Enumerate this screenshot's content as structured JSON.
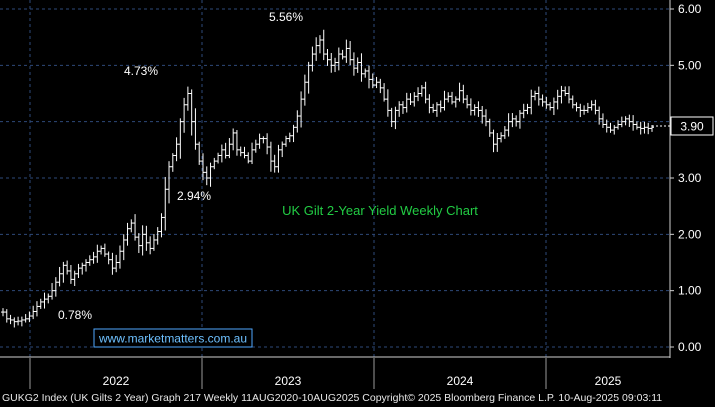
{
  "chart_data": {
    "type": "ohlc",
    "title": "UK Gilt 2-Year Yield Weekly Chart",
    "watermark": "www.marketmatters.com.au",
    "y_ticks": [
      "6.00",
      "5.00",
      "4.00",
      "3.00",
      "2.00",
      "1.00",
      "0.00"
    ],
    "ylim": [
      -0.1,
      6.1
    ],
    "x_ticks": [
      "2022",
      "2023",
      "2024",
      "2025"
    ],
    "last_value_label": "3.90",
    "annotations": [
      "4.73%",
      "5.56%",
      "2.94%",
      "0.78%"
    ],
    "grid": true,
    "colors": {
      "background": "#000000",
      "bars": "#ffffff",
      "grid": "#2e4a7a",
      "title": "#22cc44",
      "watermark_border": "#4fa8ff",
      "watermark_text": "#6ec1ff"
    },
    "series_weekly_close": [
      0.62,
      0.5,
      0.48,
      0.45,
      0.46,
      0.48,
      0.5,
      0.55,
      0.63,
      0.72,
      0.8,
      0.85,
      0.9,
      1.0,
      1.15,
      1.3,
      1.45,
      1.35,
      1.2,
      1.3,
      1.4,
      1.45,
      1.5,
      1.55,
      1.6,
      1.7,
      1.75,
      1.65,
      1.55,
      1.4,
      1.5,
      1.7,
      1.9,
      2.1,
      2.2,
      1.95,
      1.8,
      2.0,
      1.85,
      1.75,
      1.9,
      2.05,
      2.3,
      2.8,
      3.2,
      3.4,
      3.6,
      4.0,
      4.3,
      4.5,
      4.0,
      3.6,
      3.3,
      3.1,
      3.0,
      3.2,
      3.3,
      3.4,
      3.5,
      3.4,
      3.6,
      3.8,
      3.5,
      3.45,
      3.4,
      3.3,
      3.5,
      3.6,
      3.7,
      3.7,
      3.55,
      3.3,
      3.2,
      3.5,
      3.6,
      3.7,
      3.75,
      3.9,
      4.1,
      4.4,
      4.7,
      5.0,
      5.2,
      5.35,
      5.45,
      5.2,
      5.1,
      5.0,
      5.05,
      5.2,
      5.15,
      5.3,
      5.1,
      4.95,
      5.05,
      4.85,
      4.9,
      4.75,
      4.65,
      4.7,
      4.6,
      4.4,
      4.2,
      4.0,
      4.2,
      4.3,
      4.25,
      4.4,
      4.35,
      4.45,
      4.5,
      4.6,
      4.4,
      4.25,
      4.2,
      4.3,
      4.25,
      4.4,
      4.45,
      4.35,
      4.4,
      4.55,
      4.4,
      4.3,
      4.2,
      4.25,
      4.2,
      4.1,
      4.0,
      3.8,
      3.6,
      3.7,
      3.75,
      3.85,
      4.0,
      4.05,
      4.0,
      4.15,
      4.2,
      4.25,
      4.45,
      4.5,
      4.4,
      4.35,
      4.3,
      4.25,
      4.35,
      4.45,
      4.55,
      4.5,
      4.4,
      4.3,
      4.25,
      4.2,
      4.2,
      4.25,
      4.3,
      4.2,
      4.05,
      3.95,
      3.9,
      3.85,
      3.9,
      3.95,
      4.0,
      4.05,
      4.0,
      3.95,
      3.9,
      3.88,
      3.9,
      3.88,
      3.9
    ]
  },
  "footer": {
    "text": "GUKG2 Index (UK Gilts 2 Year) Graph 217  Weekly 11AUG2020-10AUG2025 Copyright© 2025 Bloomberg Finance L.P. 10-Aug-2025 09:03:11"
  }
}
